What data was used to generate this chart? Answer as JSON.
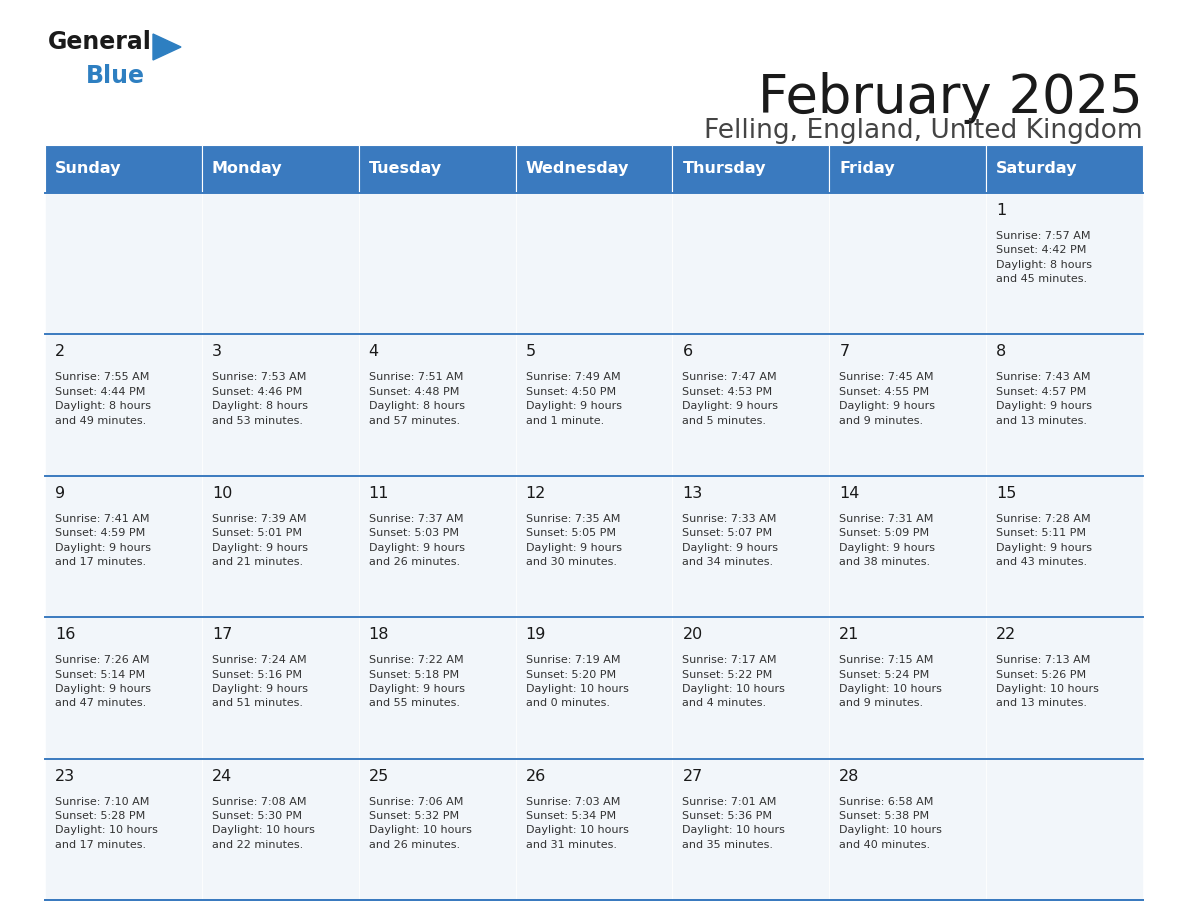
{
  "title": "February 2025",
  "subtitle": "Felling, England, United Kingdom",
  "days_of_week": [
    "Sunday",
    "Monday",
    "Tuesday",
    "Wednesday",
    "Thursday",
    "Friday",
    "Saturday"
  ],
  "header_bg": "#3a7abf",
  "header_text": "#ffffff",
  "cell_bg": "#f2f6fa",
  "cell_border_color": "#3a7abf",
  "row_border_color": "#3a7abf",
  "title_color": "#1a1a1a",
  "subtitle_color": "#444444",
  "day_number_color": "#1a1a1a",
  "info_color": "#333333",
  "weeks": [
    [
      {
        "day": null,
        "info": ""
      },
      {
        "day": null,
        "info": ""
      },
      {
        "day": null,
        "info": ""
      },
      {
        "day": null,
        "info": ""
      },
      {
        "day": null,
        "info": ""
      },
      {
        "day": null,
        "info": ""
      },
      {
        "day": 1,
        "info": "Sunrise: 7:57 AM\nSunset: 4:42 PM\nDaylight: 8 hours\nand 45 minutes."
      }
    ],
    [
      {
        "day": 2,
        "info": "Sunrise: 7:55 AM\nSunset: 4:44 PM\nDaylight: 8 hours\nand 49 minutes."
      },
      {
        "day": 3,
        "info": "Sunrise: 7:53 AM\nSunset: 4:46 PM\nDaylight: 8 hours\nand 53 minutes."
      },
      {
        "day": 4,
        "info": "Sunrise: 7:51 AM\nSunset: 4:48 PM\nDaylight: 8 hours\nand 57 minutes."
      },
      {
        "day": 5,
        "info": "Sunrise: 7:49 AM\nSunset: 4:50 PM\nDaylight: 9 hours\nand 1 minute."
      },
      {
        "day": 6,
        "info": "Sunrise: 7:47 AM\nSunset: 4:53 PM\nDaylight: 9 hours\nand 5 minutes."
      },
      {
        "day": 7,
        "info": "Sunrise: 7:45 AM\nSunset: 4:55 PM\nDaylight: 9 hours\nand 9 minutes."
      },
      {
        "day": 8,
        "info": "Sunrise: 7:43 AM\nSunset: 4:57 PM\nDaylight: 9 hours\nand 13 minutes."
      }
    ],
    [
      {
        "day": 9,
        "info": "Sunrise: 7:41 AM\nSunset: 4:59 PM\nDaylight: 9 hours\nand 17 minutes."
      },
      {
        "day": 10,
        "info": "Sunrise: 7:39 AM\nSunset: 5:01 PM\nDaylight: 9 hours\nand 21 minutes."
      },
      {
        "day": 11,
        "info": "Sunrise: 7:37 AM\nSunset: 5:03 PM\nDaylight: 9 hours\nand 26 minutes."
      },
      {
        "day": 12,
        "info": "Sunrise: 7:35 AM\nSunset: 5:05 PM\nDaylight: 9 hours\nand 30 minutes."
      },
      {
        "day": 13,
        "info": "Sunrise: 7:33 AM\nSunset: 5:07 PM\nDaylight: 9 hours\nand 34 minutes."
      },
      {
        "day": 14,
        "info": "Sunrise: 7:31 AM\nSunset: 5:09 PM\nDaylight: 9 hours\nand 38 minutes."
      },
      {
        "day": 15,
        "info": "Sunrise: 7:28 AM\nSunset: 5:11 PM\nDaylight: 9 hours\nand 43 minutes."
      }
    ],
    [
      {
        "day": 16,
        "info": "Sunrise: 7:26 AM\nSunset: 5:14 PM\nDaylight: 9 hours\nand 47 minutes."
      },
      {
        "day": 17,
        "info": "Sunrise: 7:24 AM\nSunset: 5:16 PM\nDaylight: 9 hours\nand 51 minutes."
      },
      {
        "day": 18,
        "info": "Sunrise: 7:22 AM\nSunset: 5:18 PM\nDaylight: 9 hours\nand 55 minutes."
      },
      {
        "day": 19,
        "info": "Sunrise: 7:19 AM\nSunset: 5:20 PM\nDaylight: 10 hours\nand 0 minutes."
      },
      {
        "day": 20,
        "info": "Sunrise: 7:17 AM\nSunset: 5:22 PM\nDaylight: 10 hours\nand 4 minutes."
      },
      {
        "day": 21,
        "info": "Sunrise: 7:15 AM\nSunset: 5:24 PM\nDaylight: 10 hours\nand 9 minutes."
      },
      {
        "day": 22,
        "info": "Sunrise: 7:13 AM\nSunset: 5:26 PM\nDaylight: 10 hours\nand 13 minutes."
      }
    ],
    [
      {
        "day": 23,
        "info": "Sunrise: 7:10 AM\nSunset: 5:28 PM\nDaylight: 10 hours\nand 17 minutes."
      },
      {
        "day": 24,
        "info": "Sunrise: 7:08 AM\nSunset: 5:30 PM\nDaylight: 10 hours\nand 22 minutes."
      },
      {
        "day": 25,
        "info": "Sunrise: 7:06 AM\nSunset: 5:32 PM\nDaylight: 10 hours\nand 26 minutes."
      },
      {
        "day": 26,
        "info": "Sunrise: 7:03 AM\nSunset: 5:34 PM\nDaylight: 10 hours\nand 31 minutes."
      },
      {
        "day": 27,
        "info": "Sunrise: 7:01 AM\nSunset: 5:36 PM\nDaylight: 10 hours\nand 35 minutes."
      },
      {
        "day": 28,
        "info": "Sunrise: 6:58 AM\nSunset: 5:38 PM\nDaylight: 10 hours\nand 40 minutes."
      },
      {
        "day": null,
        "info": ""
      }
    ]
  ]
}
